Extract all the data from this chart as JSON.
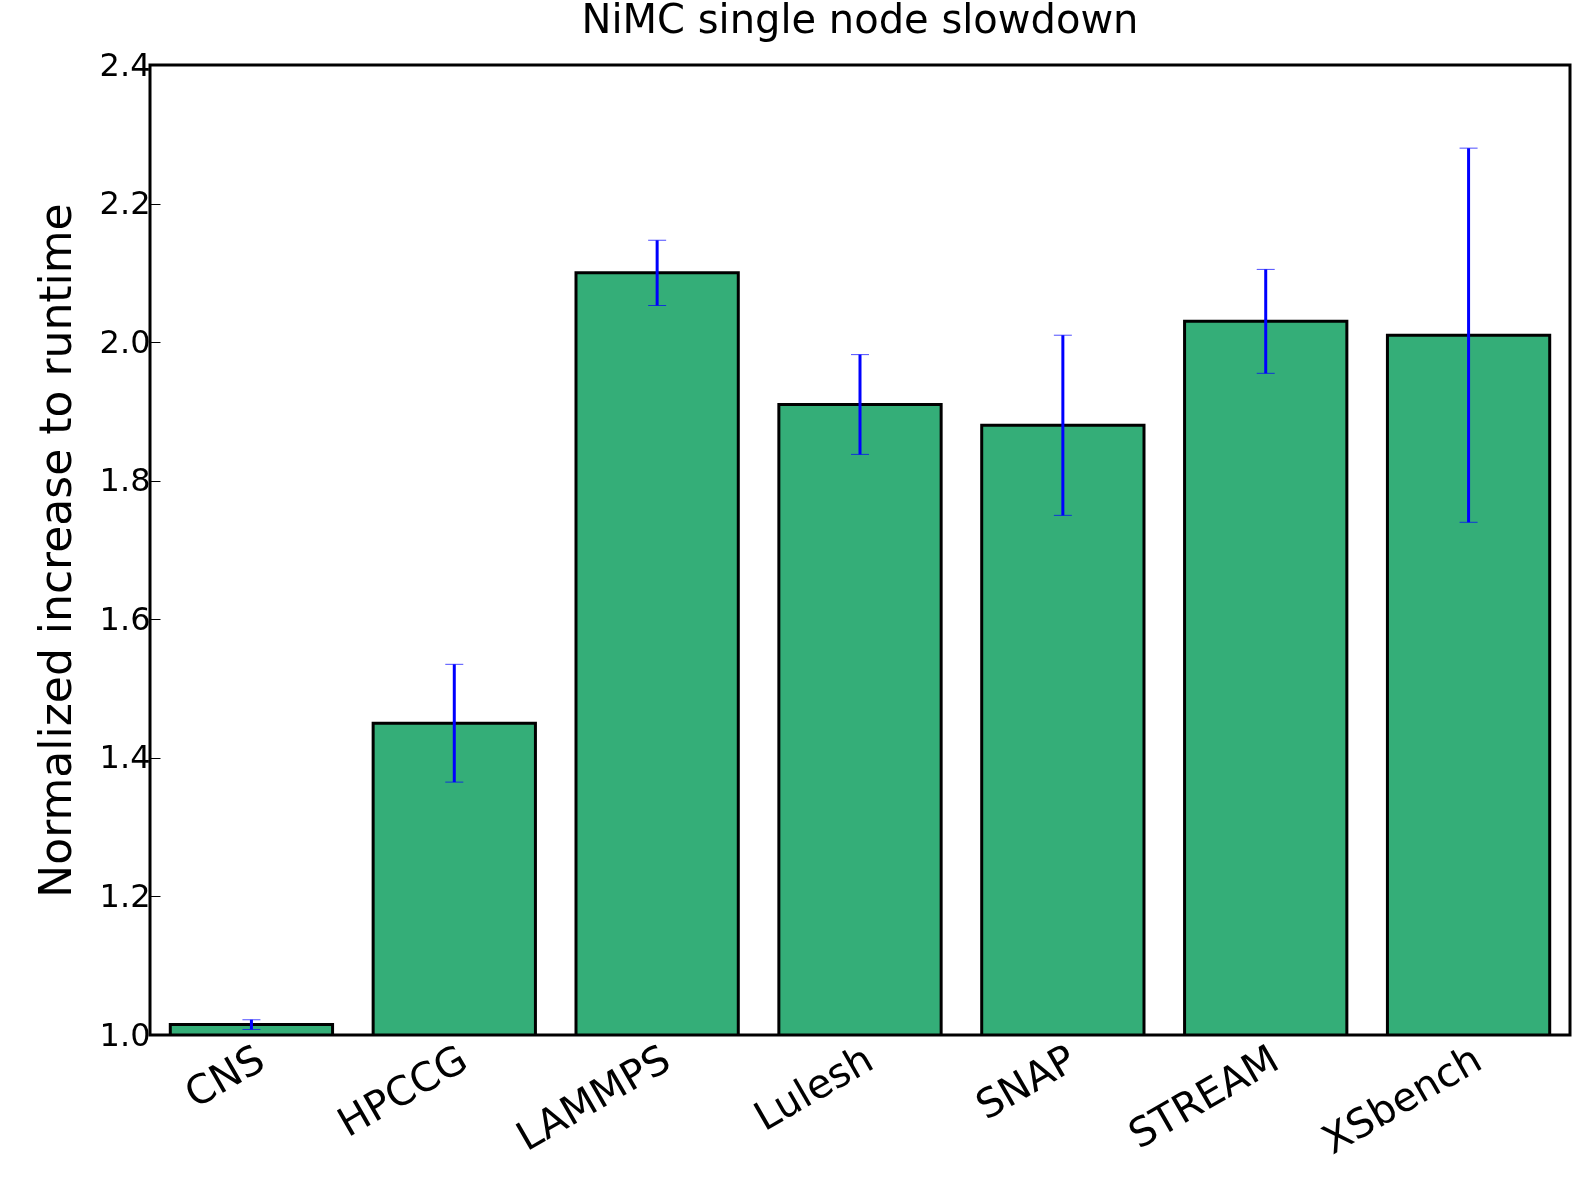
{
  "chart_data": {
    "type": "bar",
    "title": "NiMC single node slowdown",
    "ylabel": "Normalized increase to runtime",
    "categories": [
      "CNS",
      "HPCCG",
      "LAMMPS",
      "Lulesh",
      "SNAP",
      "STREAM",
      "XSbench"
    ],
    "values": [
      1.015,
      1.45,
      2.1,
      1.91,
      1.88,
      2.03,
      2.01
    ],
    "errors": [
      0.007,
      0.085,
      0.047,
      0.072,
      0.13,
      0.075,
      0.27
    ],
    "color": "#34ae78",
    "ylim": [
      1.0,
      2.4
    ],
    "yticks": [
      {
        "value": 1,
        "label": "1.0"
      },
      1.2,
      1.4,
      1.6,
      1.8,
      {
        "value": 2,
        "label": "2.0"
      },
      2.2,
      2.4
    ],
    "grid": false
  }
}
